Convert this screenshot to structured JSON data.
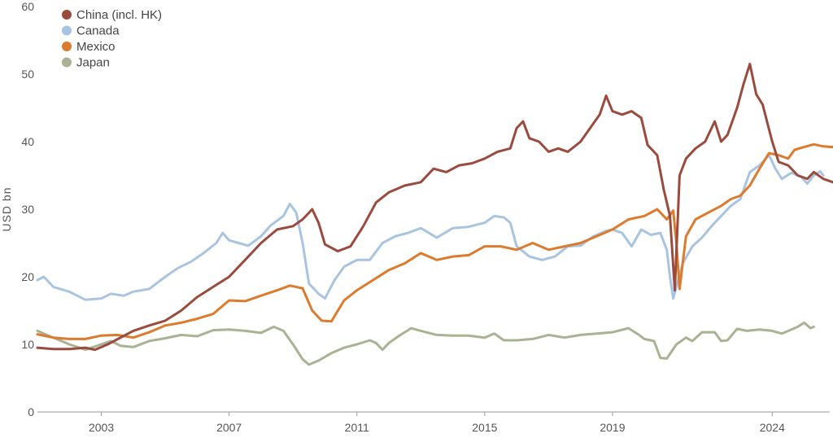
{
  "chart_data": {
    "type": "line",
    "title": "",
    "xlabel": "",
    "ylabel": "USD bn",
    "ylim": [
      0,
      60
    ],
    "xlim": [
      2001.0,
      2025.8
    ],
    "yticks": [
      0,
      10,
      20,
      30,
      40,
      50,
      60
    ],
    "xticks": [
      {
        "value": 2003.0,
        "label": "2003"
      },
      {
        "value": 2007.0,
        "label": "2007"
      },
      {
        "value": 2011.0,
        "label": "2011"
      },
      {
        "value": 2015.0,
        "label": "2015"
      },
      {
        "value": 2019.0,
        "label": "2019"
      },
      {
        "value": 2024.0,
        "label": "2024"
      }
    ],
    "grid": false,
    "legend_position": "top-left",
    "series": [
      {
        "name": "Japan",
        "color": "#a9b393",
        "points": [
          [
            2001.0,
            12.0
          ],
          [
            2001.5,
            11.0
          ],
          [
            2002.0,
            10.0
          ],
          [
            2002.5,
            9.2
          ],
          [
            2003.0,
            10.0
          ],
          [
            2003.3,
            10.5
          ],
          [
            2003.6,
            9.8
          ],
          [
            2004.0,
            9.6
          ],
          [
            2004.5,
            10.5
          ],
          [
            2005.0,
            10.9
          ],
          [
            2005.5,
            11.4
          ],
          [
            2006.0,
            11.2
          ],
          [
            2006.5,
            12.1
          ],
          [
            2007.0,
            12.2
          ],
          [
            2007.5,
            12.0
          ],
          [
            2008.0,
            11.7
          ],
          [
            2008.4,
            12.6
          ],
          [
            2008.7,
            12.0
          ],
          [
            2009.0,
            10.0
          ],
          [
            2009.3,
            7.8
          ],
          [
            2009.5,
            7.0
          ],
          [
            2009.8,
            7.6
          ],
          [
            2010.2,
            8.7
          ],
          [
            2010.6,
            9.5
          ],
          [
            2011.0,
            10.0
          ],
          [
            2011.4,
            10.6
          ],
          [
            2011.6,
            10.2
          ],
          [
            2011.8,
            9.2
          ],
          [
            2012.0,
            10.2
          ],
          [
            2012.3,
            11.2
          ],
          [
            2012.7,
            12.4
          ],
          [
            2013.0,
            12.0
          ],
          [
            2013.5,
            11.4
          ],
          [
            2014.0,
            11.3
          ],
          [
            2014.5,
            11.3
          ],
          [
            2015.0,
            11.0
          ],
          [
            2015.3,
            11.6
          ],
          [
            2015.6,
            10.6
          ],
          [
            2016.0,
            10.6
          ],
          [
            2016.5,
            10.8
          ],
          [
            2017.0,
            11.4
          ],
          [
            2017.5,
            11.0
          ],
          [
            2018.0,
            11.4
          ],
          [
            2018.5,
            11.6
          ],
          [
            2019.0,
            11.8
          ],
          [
            2019.5,
            12.4
          ],
          [
            2019.8,
            11.5
          ],
          [
            2020.0,
            10.8
          ],
          [
            2020.3,
            10.5
          ],
          [
            2020.5,
            8.0
          ],
          [
            2020.7,
            7.9
          ],
          [
            2021.0,
            10.0
          ],
          [
            2021.3,
            11.0
          ],
          [
            2021.5,
            10.5
          ],
          [
            2021.8,
            11.8
          ],
          [
            2022.2,
            11.8
          ],
          [
            2022.4,
            10.5
          ],
          [
            2022.6,
            10.6
          ],
          [
            2022.9,
            12.3
          ],
          [
            2023.2,
            12.0
          ],
          [
            2023.6,
            12.2
          ],
          [
            2024.0,
            12.0
          ],
          [
            2024.3,
            11.6
          ],
          [
            2024.6,
            12.2
          ],
          [
            2024.8,
            12.6
          ],
          [
            2025.0,
            13.2
          ],
          [
            2025.2,
            12.4
          ],
          [
            2025.3,
            12.6
          ]
        ]
      },
      {
        "name": "Canada",
        "color": "#a9c4e0",
        "points": [
          [
            2001.0,
            19.5
          ],
          [
            2001.2,
            20.0
          ],
          [
            2001.5,
            18.5
          ],
          [
            2002.0,
            17.8
          ],
          [
            2002.5,
            16.6
          ],
          [
            2003.0,
            16.8
          ],
          [
            2003.3,
            17.5
          ],
          [
            2003.7,
            17.2
          ],
          [
            2004.0,
            17.8
          ],
          [
            2004.5,
            18.2
          ],
          [
            2005.0,
            20.0
          ],
          [
            2005.4,
            21.3
          ],
          [
            2005.8,
            22.2
          ],
          [
            2006.2,
            23.5
          ],
          [
            2006.6,
            25.0
          ],
          [
            2006.8,
            26.5
          ],
          [
            2007.0,
            25.4
          ],
          [
            2007.3,
            25.0
          ],
          [
            2007.6,
            24.6
          ],
          [
            2008.0,
            26.0
          ],
          [
            2008.3,
            27.6
          ],
          [
            2008.7,
            29.0
          ],
          [
            2008.9,
            30.8
          ],
          [
            2009.1,
            29.5
          ],
          [
            2009.3,
            25.0
          ],
          [
            2009.5,
            19.0
          ],
          [
            2009.8,
            17.5
          ],
          [
            2010.0,
            16.8
          ],
          [
            2010.3,
            19.5
          ],
          [
            2010.6,
            21.5
          ],
          [
            2011.0,
            22.5
          ],
          [
            2011.4,
            22.5
          ],
          [
            2011.8,
            25.0
          ],
          [
            2012.2,
            26.0
          ],
          [
            2012.6,
            26.5
          ],
          [
            2013.0,
            27.2
          ],
          [
            2013.5,
            25.8
          ],
          [
            2014.0,
            27.2
          ],
          [
            2014.5,
            27.4
          ],
          [
            2015.0,
            28.0
          ],
          [
            2015.3,
            29.0
          ],
          [
            2015.6,
            28.8
          ],
          [
            2015.8,
            28.0
          ],
          [
            2016.0,
            24.5
          ],
          [
            2016.4,
            23.0
          ],
          [
            2016.8,
            22.5
          ],
          [
            2017.2,
            23.0
          ],
          [
            2017.6,
            24.5
          ],
          [
            2018.0,
            24.6
          ],
          [
            2018.4,
            26.0
          ],
          [
            2018.8,
            26.8
          ],
          [
            2019.0,
            27.0
          ],
          [
            2019.3,
            26.5
          ],
          [
            2019.6,
            24.5
          ],
          [
            2019.9,
            27.0
          ],
          [
            2020.2,
            26.2
          ],
          [
            2020.5,
            26.5
          ],
          [
            2020.7,
            24.0
          ],
          [
            2020.8,
            20.0
          ],
          [
            2020.9,
            16.8
          ],
          [
            2021.0,
            18.5
          ],
          [
            2021.2,
            22.0
          ],
          [
            2021.5,
            24.5
          ],
          [
            2021.8,
            25.8
          ],
          [
            2022.1,
            27.5
          ],
          [
            2022.4,
            29.0
          ],
          [
            2022.7,
            30.5
          ],
          [
            2023.0,
            31.5
          ],
          [
            2023.3,
            35.5
          ],
          [
            2023.6,
            36.5
          ],
          [
            2023.9,
            38.0
          ],
          [
            2024.1,
            36.0
          ],
          [
            2024.3,
            34.5
          ],
          [
            2024.6,
            35.4
          ],
          [
            2024.9,
            34.8
          ],
          [
            2025.1,
            33.8
          ],
          [
            2025.3,
            35.0
          ],
          [
            2025.5,
            35.6
          ],
          [
            2025.6,
            35.0
          ]
        ]
      },
      {
        "name": "Mexico",
        "color": "#dc7b2d",
        "points": [
          [
            2001.0,
            11.5
          ],
          [
            2001.5,
            11.0
          ],
          [
            2002.0,
            10.8
          ],
          [
            2002.5,
            10.8
          ],
          [
            2003.0,
            11.3
          ],
          [
            2003.5,
            11.4
          ],
          [
            2004.0,
            11.0
          ],
          [
            2004.5,
            11.8
          ],
          [
            2005.0,
            12.8
          ],
          [
            2005.5,
            13.2
          ],
          [
            2006.0,
            13.8
          ],
          [
            2006.5,
            14.5
          ],
          [
            2007.0,
            16.5
          ],
          [
            2007.5,
            16.4
          ],
          [
            2008.0,
            17.2
          ],
          [
            2008.5,
            18.0
          ],
          [
            2008.9,
            18.7
          ],
          [
            2009.3,
            18.3
          ],
          [
            2009.6,
            15.0
          ],
          [
            2009.9,
            13.5
          ],
          [
            2010.2,
            13.4
          ],
          [
            2010.6,
            16.5
          ],
          [
            2011.0,
            18.0
          ],
          [
            2011.5,
            19.5
          ],
          [
            2012.0,
            21.0
          ],
          [
            2012.5,
            22.0
          ],
          [
            2013.0,
            23.5
          ],
          [
            2013.5,
            22.5
          ],
          [
            2014.0,
            23.0
          ],
          [
            2014.5,
            23.2
          ],
          [
            2015.0,
            24.5
          ],
          [
            2015.5,
            24.5
          ],
          [
            2016.0,
            24.0
          ],
          [
            2016.5,
            25.0
          ],
          [
            2017.0,
            24.0
          ],
          [
            2017.5,
            24.5
          ],
          [
            2018.0,
            25.0
          ],
          [
            2018.5,
            26.0
          ],
          [
            2019.0,
            27.0
          ],
          [
            2019.5,
            28.5
          ],
          [
            2020.0,
            29.0
          ],
          [
            2020.4,
            30.0
          ],
          [
            2020.7,
            28.5
          ],
          [
            2020.9,
            29.8
          ],
          [
            2021.0,
            25.0
          ],
          [
            2021.1,
            18.2
          ],
          [
            2021.3,
            26.0
          ],
          [
            2021.6,
            28.5
          ],
          [
            2022.0,
            29.5
          ],
          [
            2022.4,
            30.5
          ],
          [
            2022.7,
            31.5
          ],
          [
            2023.0,
            32.0
          ],
          [
            2023.3,
            33.5
          ],
          [
            2023.6,
            36.0
          ],
          [
            2023.9,
            38.3
          ],
          [
            2024.2,
            38.0
          ],
          [
            2024.5,
            37.5
          ],
          [
            2024.7,
            38.8
          ],
          [
            2025.0,
            39.2
          ],
          [
            2025.3,
            39.6
          ],
          [
            2025.6,
            39.3
          ],
          [
            2025.9,
            39.2
          ]
        ]
      },
      {
        "name": "China (incl. HK)",
        "color": "#9b4a3e",
        "points": [
          [
            2001.0,
            9.5
          ],
          [
            2001.5,
            9.3
          ],
          [
            2002.0,
            9.3
          ],
          [
            2002.5,
            9.5
          ],
          [
            2002.8,
            9.2
          ],
          [
            2003.2,
            10.0
          ],
          [
            2003.6,
            11.0
          ],
          [
            2004.0,
            12.0
          ],
          [
            2004.5,
            12.8
          ],
          [
            2005.0,
            13.5
          ],
          [
            2005.5,
            15.0
          ],
          [
            2006.0,
            17.0
          ],
          [
            2006.5,
            18.5
          ],
          [
            2007.0,
            20.0
          ],
          [
            2007.5,
            22.5
          ],
          [
            2008.0,
            25.0
          ],
          [
            2008.5,
            27.0
          ],
          [
            2009.0,
            27.5
          ],
          [
            2009.3,
            28.5
          ],
          [
            2009.6,
            30.0
          ],
          [
            2009.8,
            28.0
          ],
          [
            2010.0,
            24.8
          ],
          [
            2010.4,
            23.8
          ],
          [
            2010.8,
            24.5
          ],
          [
            2011.2,
            27.5
          ],
          [
            2011.6,
            31.0
          ],
          [
            2012.0,
            32.5
          ],
          [
            2012.5,
            33.5
          ],
          [
            2013.0,
            34.0
          ],
          [
            2013.4,
            36.0
          ],
          [
            2013.8,
            35.5
          ],
          [
            2014.2,
            36.5
          ],
          [
            2014.6,
            36.8
          ],
          [
            2015.0,
            37.5
          ],
          [
            2015.4,
            38.5
          ],
          [
            2015.8,
            39.0
          ],
          [
            2016.0,
            42.0
          ],
          [
            2016.2,
            43.0
          ],
          [
            2016.4,
            40.5
          ],
          [
            2016.7,
            40.0
          ],
          [
            2017.0,
            38.5
          ],
          [
            2017.3,
            39.0
          ],
          [
            2017.6,
            38.5
          ],
          [
            2018.0,
            40.0
          ],
          [
            2018.3,
            42.0
          ],
          [
            2018.6,
            44.0
          ],
          [
            2018.8,
            46.8
          ],
          [
            2019.0,
            44.5
          ],
          [
            2019.3,
            44.0
          ],
          [
            2019.6,
            44.5
          ],
          [
            2019.9,
            43.5
          ],
          [
            2020.1,
            39.5
          ],
          [
            2020.4,
            38.0
          ],
          [
            2020.6,
            33.0
          ],
          [
            2020.8,
            29.0
          ],
          [
            2020.95,
            18.0
          ],
          [
            2021.1,
            35.0
          ],
          [
            2021.3,
            37.5
          ],
          [
            2021.6,
            39.0
          ],
          [
            2021.9,
            40.0
          ],
          [
            2022.2,
            43.0
          ],
          [
            2022.4,
            40.0
          ],
          [
            2022.6,
            41.0
          ],
          [
            2022.9,
            45.0
          ],
          [
            2023.1,
            48.5
          ],
          [
            2023.3,
            51.5
          ],
          [
            2023.5,
            47.0
          ],
          [
            2023.7,
            45.5
          ],
          [
            2024.0,
            40.0
          ],
          [
            2024.2,
            37.0
          ],
          [
            2024.5,
            36.5
          ],
          [
            2024.8,
            35.0
          ],
          [
            2025.1,
            34.5
          ],
          [
            2025.3,
            35.5
          ],
          [
            2025.6,
            34.5
          ],
          [
            2025.9,
            34.0
          ]
        ]
      }
    ],
    "legend": [
      {
        "name": "China (incl. HK)",
        "color": "#9b4a3e"
      },
      {
        "name": "Canada",
        "color": "#a9c4e0"
      },
      {
        "name": "Mexico",
        "color": "#dc7b2d"
      },
      {
        "name": "Japan",
        "color": "#a9b393"
      }
    ]
  }
}
